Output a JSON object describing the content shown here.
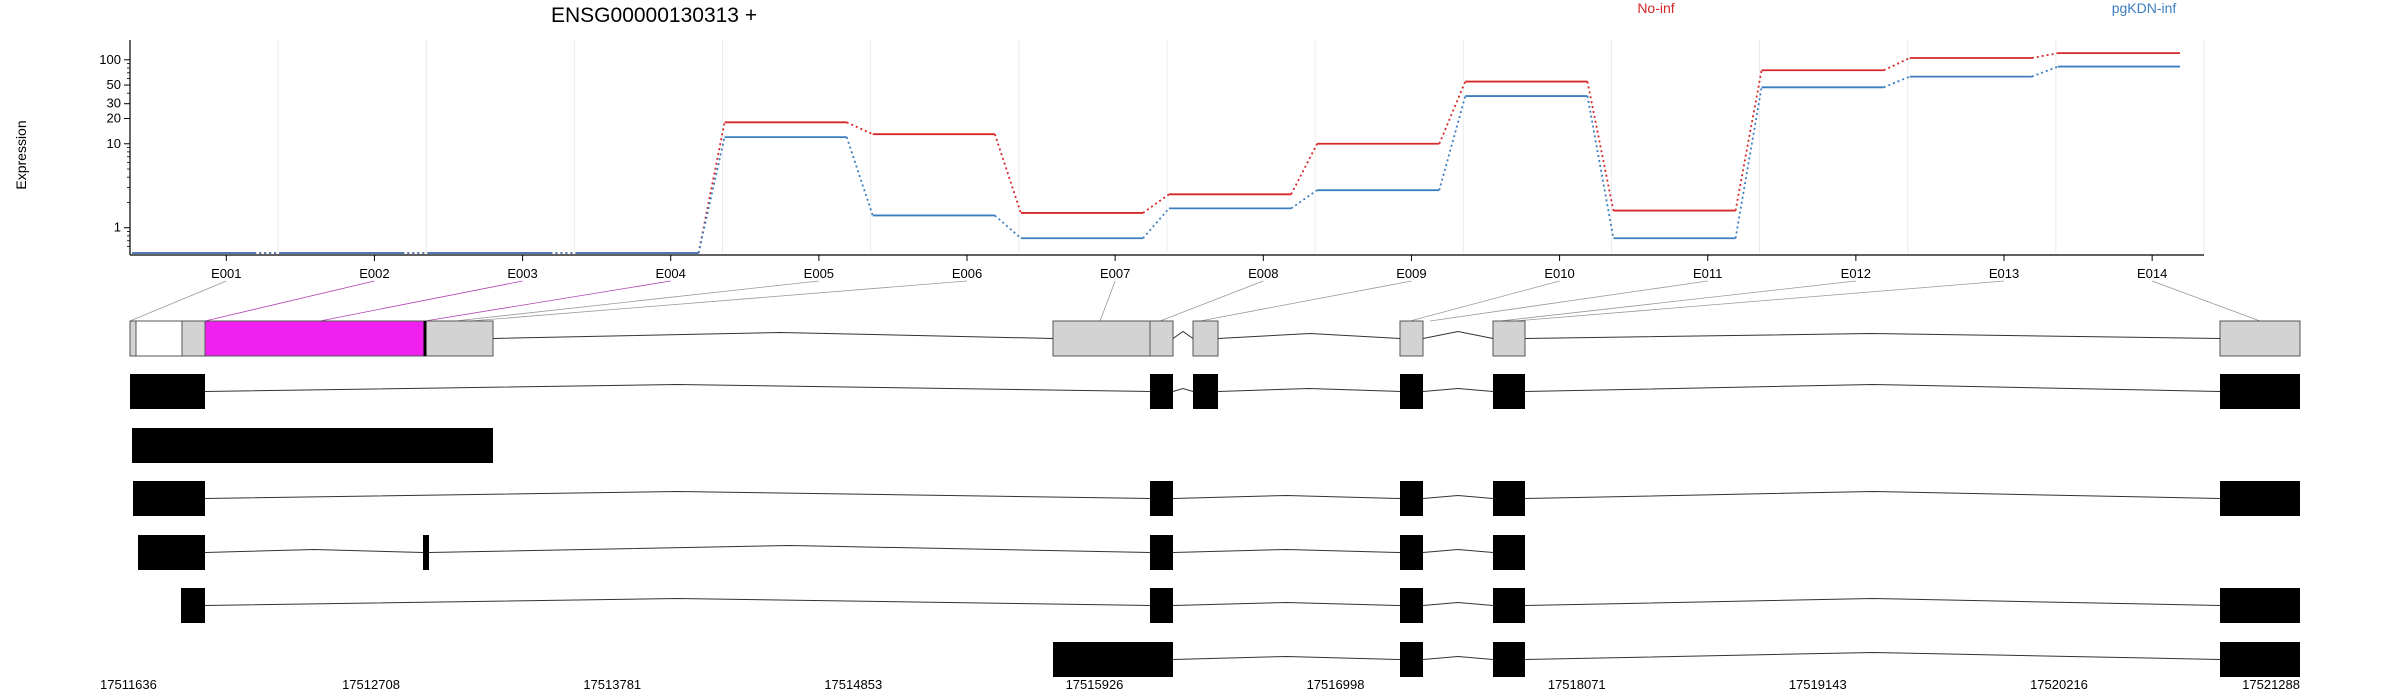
{
  "title": "ENSG00000130313 +",
  "legend": [
    {
      "label": "No-inf",
      "color": "#d62728"
    },
    {
      "label": "pgKDN-inf",
      "color": "#3b7ec0"
    }
  ],
  "chart_data": {
    "type": "line",
    "ylabel": "Expression",
    "yscale": "log",
    "ylim": [
      0.5,
      150
    ],
    "yticks": [
      1,
      10,
      20,
      30,
      50,
      100
    ],
    "ytick_labels": [
      "1",
      "10",
      "20",
      "30",
      "50",
      "100"
    ],
    "categories": [
      "E001",
      "E002",
      "E003",
      "E004",
      "E005",
      "E006",
      "E007",
      "E008",
      "E009",
      "E010",
      "E011",
      "E012",
      "E013",
      "E014"
    ],
    "series": [
      {
        "name": "No-inf",
        "color": "#d62728",
        "values": [
          0.5,
          0.5,
          0.5,
          0.5,
          18,
          13,
          1.5,
          2.5,
          10,
          55,
          1.6,
          75,
          105,
          120
        ]
      },
      {
        "name": "pgKDN-inf",
        "color": "#3b7ec0",
        "values": [
          0.5,
          0.5,
          0.5,
          0.5,
          12,
          1.4,
          0.75,
          1.7,
          2.8,
          37,
          0.75,
          47,
          63,
          83
        ]
      }
    ]
  },
  "gene_model": {
    "coordinates": [
      "17511636",
      "17512708",
      "17513781",
      "17514853",
      "17515926",
      "17516998",
      "17518071",
      "17519143",
      "17520216",
      "17521288"
    ],
    "bin_color": "#d3d3d3",
    "highlight_color": "#f020f0",
    "transcript_color": "#000000"
  }
}
